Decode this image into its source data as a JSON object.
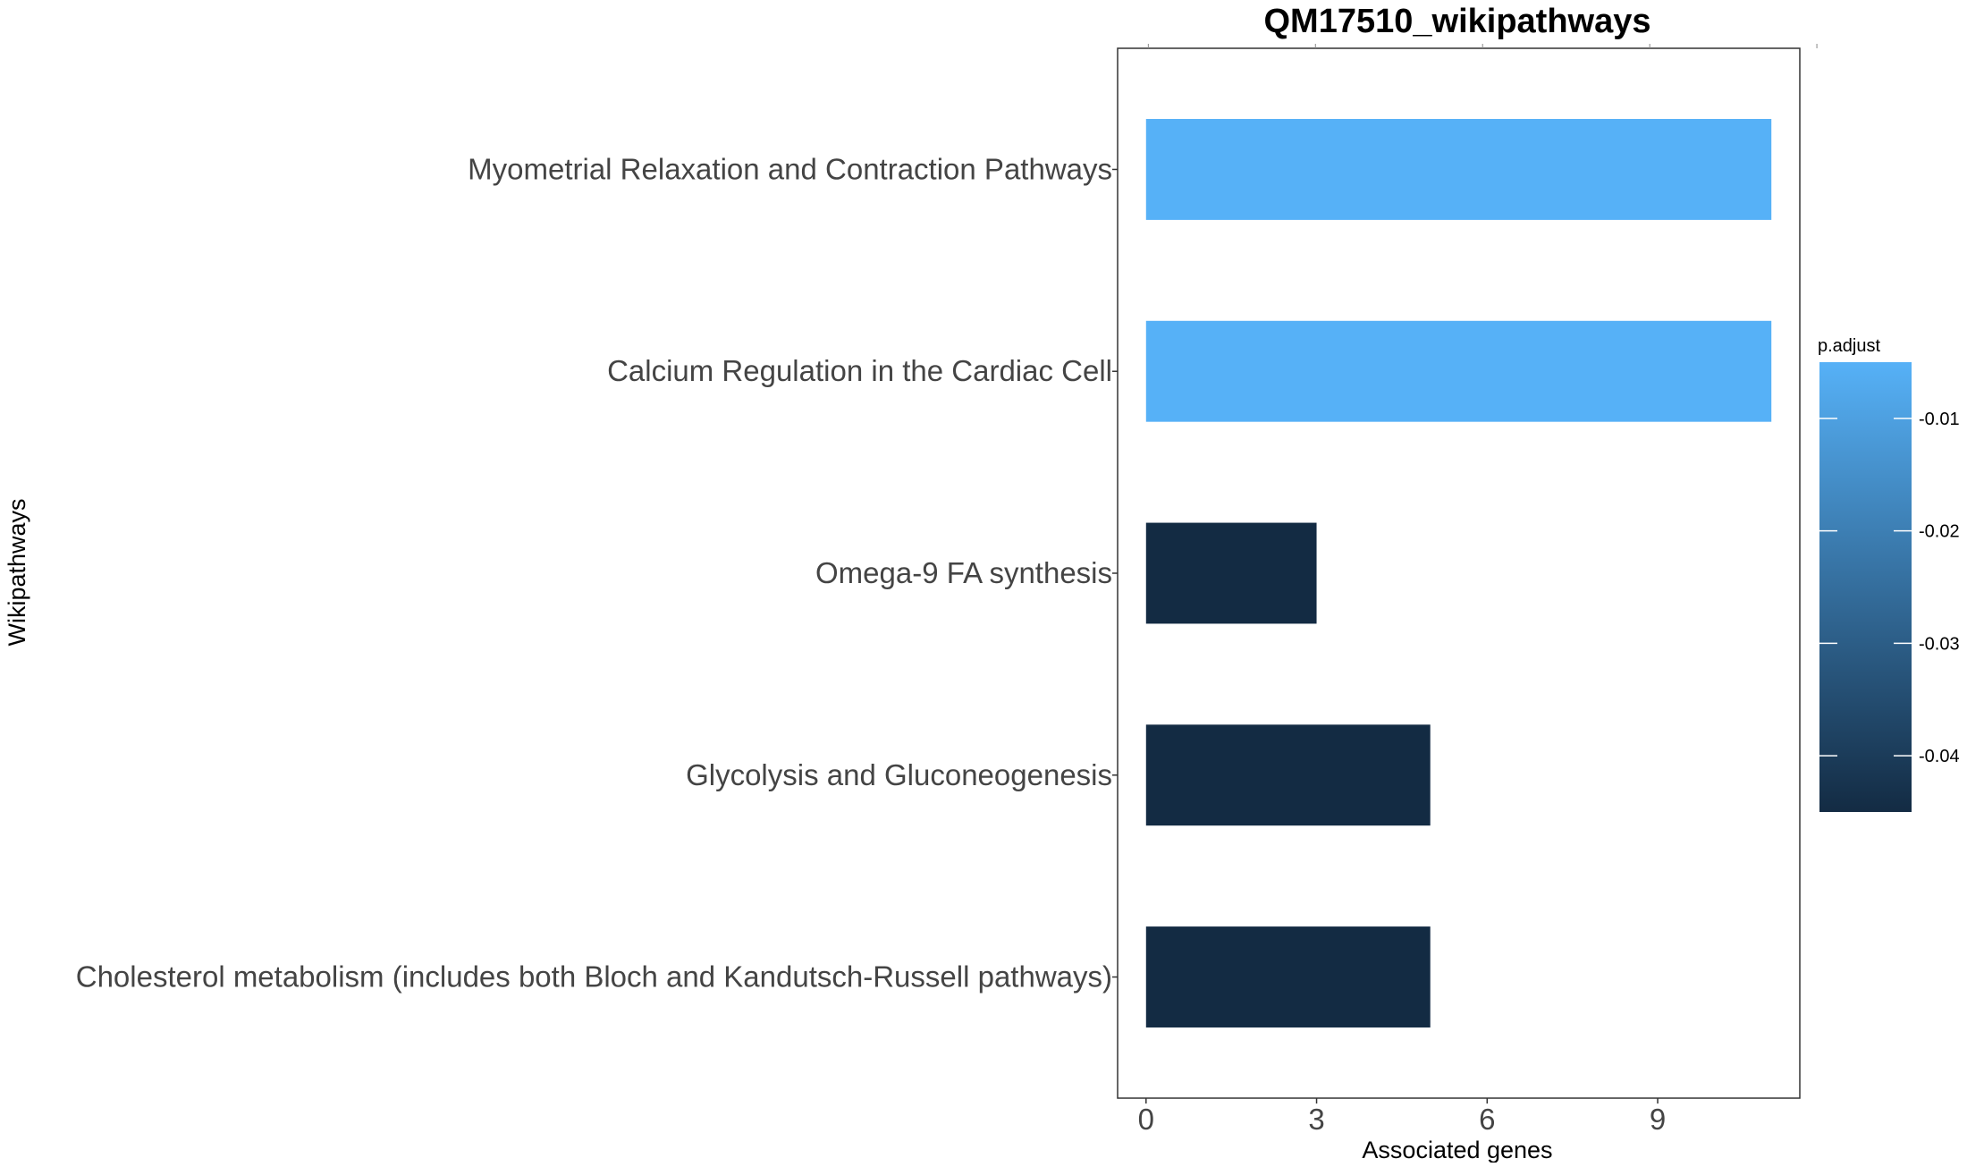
{
  "chart_data": {
    "type": "bar",
    "orientation": "horizontal",
    "title": "QM17510_wikipathways",
    "xlabel": "Associated genes",
    "ylabel": "Wikipathways",
    "categories": [
      "Myometrial Relaxation and Contraction Pathways",
      "Calcium Regulation in the Cardiac Cell",
      "Omega-9 FA synthesis",
      "Glycolysis and Gluconeogenesis",
      "Cholesterol metabolism (includes both Bloch and Kandutsch-Russell pathways)"
    ],
    "values": [
      11,
      11,
      3,
      5,
      5
    ],
    "p_adjust": [
      -0.005,
      -0.005,
      -0.045,
      -0.045,
      -0.045
    ],
    "xlim": [
      -0.5,
      11.5
    ],
    "x_ticks": [
      0,
      3,
      6,
      9
    ],
    "x_tick_labels": [
      "0",
      "3",
      "6",
      "9"
    ],
    "grid": false,
    "legend": {
      "title": "p.adjust",
      "position": "right",
      "range": [
        -0.045,
        -0.005
      ],
      "ticks": [
        -0.01,
        -0.02,
        -0.03,
        -0.04
      ],
      "tick_labels": [
        "-0.01",
        "-0.02",
        "-0.03",
        "-0.04"
      ],
      "color_low": "#56b1f7",
      "color_high": "#132b43"
    }
  }
}
